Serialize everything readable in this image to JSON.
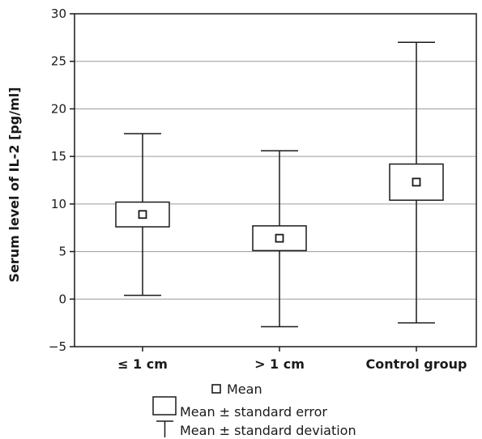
{
  "chart_data": {
    "type": "box",
    "ylabel": "Serum level of IL-2 [pg/ml]",
    "xlabel": "",
    "ylim": [
      -5,
      30
    ],
    "yticks": [
      -5,
      0,
      5,
      10,
      15,
      20,
      25,
      30
    ],
    "ytick_labels": [
      "−5",
      "0",
      "5",
      "10",
      "15",
      "20",
      "25",
      "30"
    ],
    "grid": "horizontal",
    "categories": [
      "≤ 1 cm",
      "> 1 cm",
      "Control group"
    ],
    "groups": [
      {
        "category": "≤ 1 cm",
        "mean": 8.9,
        "se_low": 7.6,
        "se_high": 10.2,
        "sd_low": 0.4,
        "sd_high": 17.4
      },
      {
        "category": "> 1 cm",
        "mean": 6.4,
        "se_low": 5.1,
        "se_high": 7.7,
        "sd_low": -2.9,
        "sd_high": 15.6
      },
      {
        "category": "Control group",
        "mean": 12.3,
        "se_low": 10.4,
        "se_high": 14.2,
        "sd_low": -2.5,
        "sd_high": 27.0
      }
    ],
    "legend": {
      "position": "bottom-center",
      "items": [
        {
          "symbol": "small-square",
          "label": "Mean"
        },
        {
          "symbol": "box",
          "label": "Mean ± standard error"
        },
        {
          "symbol": "whisker",
          "label": "Mean ± standard deviation"
        }
      ]
    }
  }
}
